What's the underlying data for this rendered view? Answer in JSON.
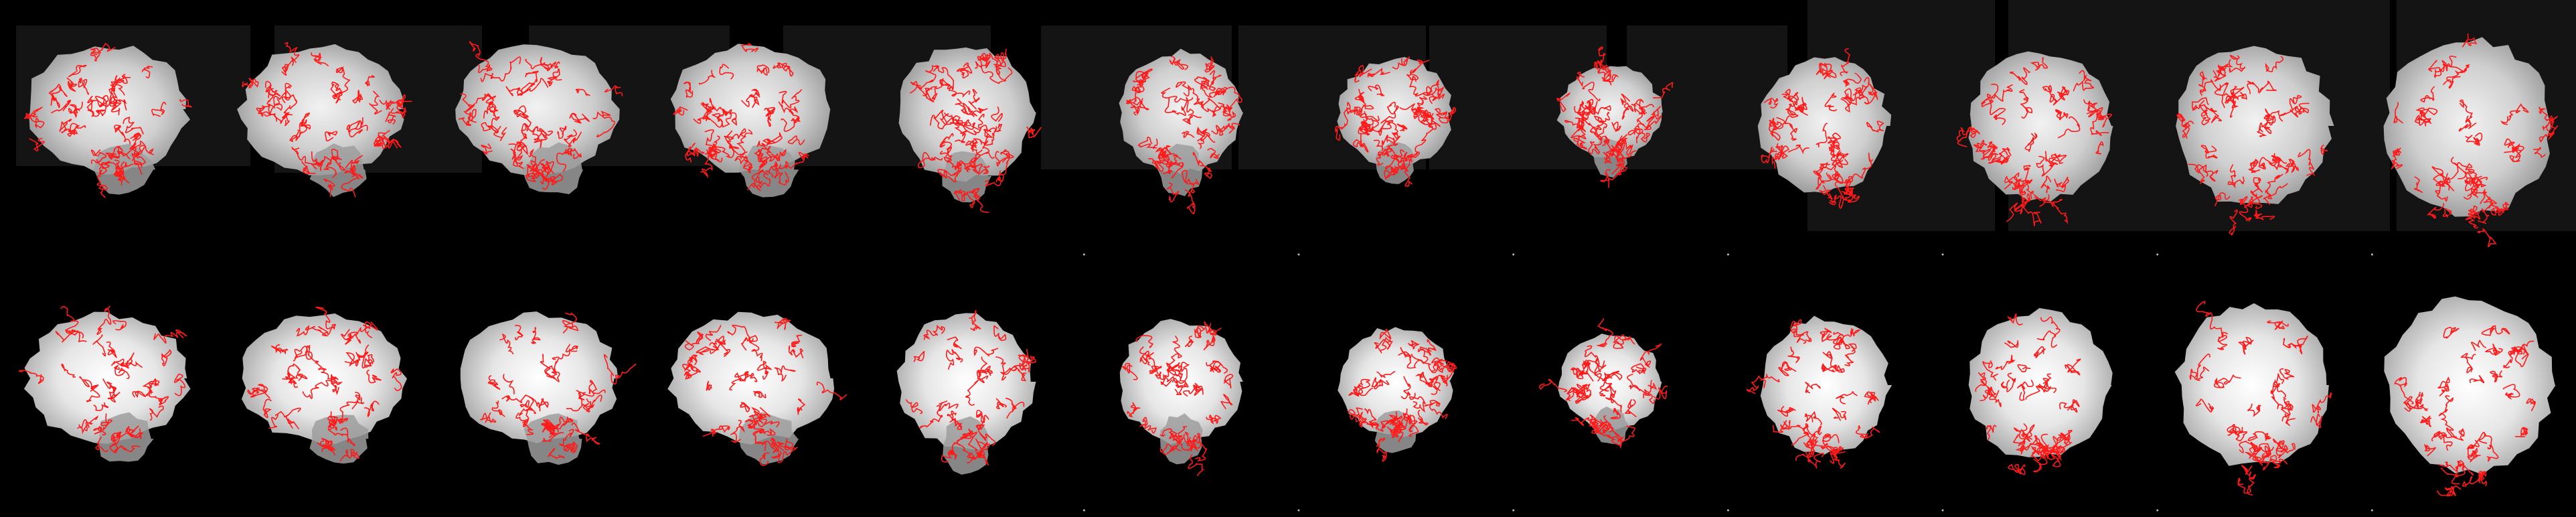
{
  "figure": {
    "background_color": "#000000",
    "overlay_color": "#ff1a1a",
    "tissue_color": "#d9d9d9"
  },
  "rows": [
    {
      "row_index": 1,
      "panels": [
        {
          "orientation": "sagittal"
        },
        {
          "orientation": "sagittal"
        },
        {
          "orientation": "sagittal"
        },
        {
          "orientation": "sagittal"
        },
        {
          "orientation": "coronal"
        },
        {
          "orientation": "coronal"
        },
        {
          "orientation": "coronal"
        },
        {
          "orientation": "coronal"
        },
        {
          "orientation": "axial"
        },
        {
          "orientation": "axial"
        },
        {
          "orientation": "axial"
        },
        {
          "orientation": "axial"
        }
      ]
    },
    {
      "row_index": 2,
      "panels": [
        {
          "orientation": "sagittal"
        },
        {
          "orientation": "sagittal"
        },
        {
          "orientation": "sagittal"
        },
        {
          "orientation": "sagittal"
        },
        {
          "orientation": "coronal"
        },
        {
          "orientation": "coronal"
        },
        {
          "orientation": "coronal"
        },
        {
          "orientation": "coronal"
        },
        {
          "orientation": "axial"
        },
        {
          "orientation": "axial"
        },
        {
          "orientation": "axial"
        },
        {
          "orientation": "axial"
        }
      ]
    }
  ]
}
